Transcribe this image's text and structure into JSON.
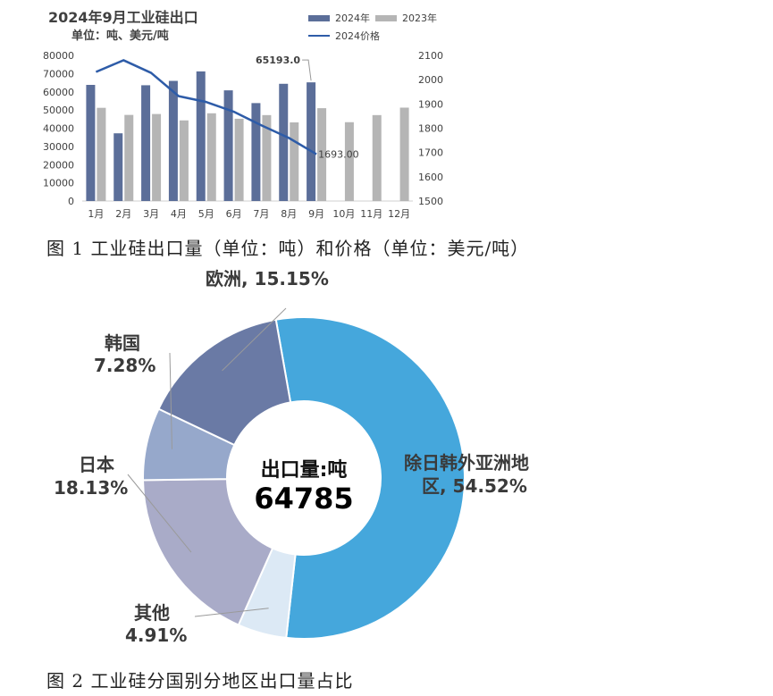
{
  "chart_data": [
    {
      "type": "bar",
      "title": "2024年9月工业硅出口",
      "subtitle": "单位：吨、美元/吨",
      "categories": [
        "1月",
        "2月",
        "3月",
        "4月",
        "5月",
        "6月",
        "7月",
        "8月",
        "9月",
        "10月",
        "11月",
        "12月"
      ],
      "series": [
        {
          "name": "2024年",
          "kind": "bar",
          "color": "#5b6e99",
          "values": [
            63800,
            37200,
            63600,
            66000,
            71200,
            60800,
            53800,
            64400,
            65193.0,
            null,
            null,
            null
          ]
        },
        {
          "name": "2023年",
          "kind": "bar",
          "color": "#b5b5b5",
          "values": [
            51200,
            47300,
            47800,
            44300,
            48200,
            45200,
            47200,
            43200,
            51000,
            43300,
            47200,
            51300
          ]
        },
        {
          "name": "2024价格",
          "kind": "line",
          "axis": "right",
          "color": "#2e5ca8",
          "values": [
            2032,
            2080,
            2028,
            1932,
            1908,
            1868,
            1812,
            1760,
            1693.0,
            null,
            null,
            null
          ]
        }
      ],
      "ylim": [
        0,
        80000
      ],
      "y_ticks": [
        "0",
        "10000",
        "20000",
        "30000",
        "40000",
        "50000",
        "60000",
        "70000",
        "80000"
      ],
      "y2lim": [
        1500,
        2100
      ],
      "y2_ticks": [
        "1500",
        "1600",
        "1700",
        "1800",
        "1900",
        "2000",
        "2100"
      ],
      "annotations": [
        {
          "text": "65193.0",
          "series": "2024年",
          "category": "9月"
        },
        {
          "text": "1693.00",
          "series": "2024价格",
          "category": "9月"
        }
      ],
      "grid": false,
      "legend_position": "top-right"
    },
    {
      "type": "pie",
      "variant": "donut",
      "center_label": "出口量:吨",
      "center_value": "64785",
      "slices": [
        {
          "label": "除日韩外亚洲地区",
          "percent_text": "54.52%",
          "value": 54.52,
          "color": "#45a7dc"
        },
        {
          "label": "其他",
          "percent_text": "4.91%",
          "value": 4.91,
          "color": "#dce9f5"
        },
        {
          "label": "日本",
          "percent_text": "18.13%",
          "value": 18.13,
          "color": "#a9abc8"
        },
        {
          "label": "韩国",
          "percent_text": "7.28%",
          "value": 7.28,
          "color": "#96a8cb"
        },
        {
          "label": "欧洲",
          "percent_text": "15.15%",
          "value": 15.15,
          "color": "#6a7aa5"
        }
      ]
    }
  ],
  "captions": {
    "fig1": "图 1  工业硅出口量（单位：吨）和价格（单位：美元/吨）",
    "fig2": "图 2  工业硅分国别分地区出口量占比"
  },
  "pie_labels": {
    "asia_line1": "除日韩外亚洲地",
    "asia_line2": "区, 54.52%",
    "europe": "欧洲, 15.15%",
    "korea_name": "韩国",
    "korea_pct": "7.28%",
    "japan_name": "日本",
    "japan_pct": "18.13%",
    "other_name": "其他",
    "other_pct": "4.91%"
  }
}
